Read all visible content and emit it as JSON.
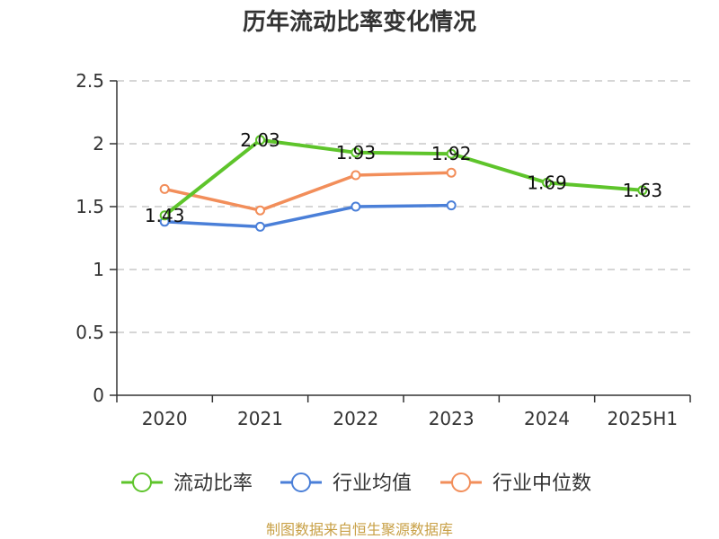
{
  "chart_data": {
    "type": "line",
    "title": "历年流动比率变化情况",
    "categories": [
      "2020",
      "2021",
      "2022",
      "2023",
      "2024",
      "2025H1"
    ],
    "ylim": [
      0,
      2.5
    ],
    "yticks": [
      "0",
      "0.5",
      "1",
      "1.5",
      "2",
      "2.5"
    ],
    "grid": true,
    "legend_position": "bottom",
    "series": [
      {
        "name": "流动比率",
        "color": "#5ec42b",
        "values": [
          1.43,
          2.03,
          1.93,
          1.92,
          1.69,
          1.63
        ],
        "labels": [
          "1.43",
          "2.03",
          "1.93",
          "1.92",
          "1.69",
          "1.63"
        ]
      },
      {
        "name": "行业均值",
        "color": "#4a7fd8",
        "values": [
          1.38,
          1.34,
          1.5,
          1.51,
          null,
          null
        ]
      },
      {
        "name": "行业中位数",
        "color": "#f28e5a",
        "values": [
          1.64,
          1.47,
          1.75,
          1.77,
          null,
          null
        ]
      }
    ]
  },
  "source": {
    "text": "制图数据来自恒生聚源数据库",
    "color": "#c8a046"
  }
}
